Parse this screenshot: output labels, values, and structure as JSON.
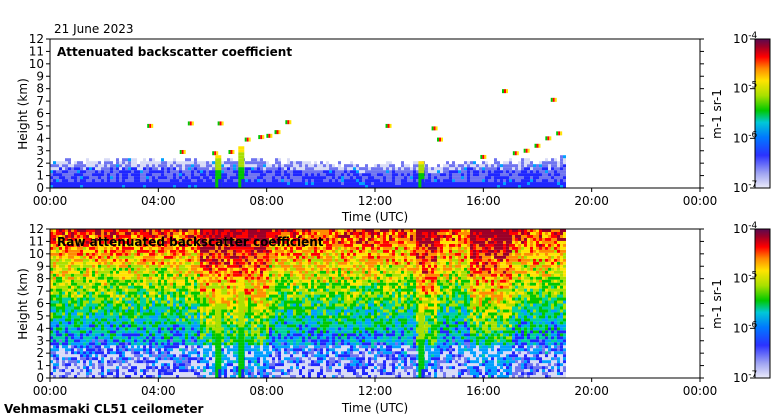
{
  "date_label": "21 June 2023",
  "instrument_label": "Vehmasmaki CL51 ceilometer",
  "colors": {
    "frame": "#000000",
    "background": "#ffffff",
    "colormap": [
      "#d8dbf6",
      "#6f74f0",
      "#1f26ff",
      "#00a0ff",
      "#00d0a0",
      "#00c800",
      "#a8e000",
      "#ffe400",
      "#ff8c00",
      "#ff0000",
      "#9b0028",
      "#5a0a50"
    ]
  },
  "chart_data": [
    {
      "type": "heatmap",
      "title": "Attenuated backscatter coefficient",
      "xlabel": "Time (UTC)",
      "ylabel": "Height (km)",
      "x_tick_labels": [
        "00:00",
        "04:00",
        "08:00",
        "12:00",
        "16:00",
        "20:00",
        "00:00"
      ],
      "x_tick_hours": [
        0,
        4,
        8,
        12,
        16,
        20,
        24
      ],
      "xlim_hours": [
        0,
        24
      ],
      "y_ticks": [
        0,
        1,
        2,
        3,
        4,
        5,
        6,
        7,
        8,
        9,
        10,
        11,
        12
      ],
      "ylim_km": [
        0,
        12
      ],
      "data_end_hour": 19.0,
      "colorbar": {
        "scale": "log",
        "min_label": "10-7",
        "max_label": "10-4",
        "tick_labels": [
          "10-4",
          "10-5",
          "10-6",
          "10-7"
        ],
        "unit_label": "m-1 sr-1"
      },
      "features": {
        "boundary_layer_km": [
          [
            0,
            2.0
          ],
          [
            6,
            2.2
          ],
          [
            12,
            1.7
          ],
          [
            18,
            2.1
          ],
          [
            19,
            2.4
          ]
        ],
        "precipitation_streaks": [
          {
            "hour": 6.25,
            "top_km": 2.6
          },
          {
            "hour": 7.1,
            "top_km": 3.3
          },
          {
            "hour": 13.75,
            "top_km": 2.1
          }
        ],
        "cloud_echoes": [
          {
            "hour": 3.7,
            "km": 5.0
          },
          {
            "hour": 4.9,
            "km": 2.9
          },
          {
            "hour": 5.2,
            "km": 5.2
          },
          {
            "hour": 6.1,
            "km": 2.8
          },
          {
            "hour": 6.3,
            "km": 5.2
          },
          {
            "hour": 6.7,
            "km": 2.9
          },
          {
            "hour": 7.3,
            "km": 3.9
          },
          {
            "hour": 7.8,
            "km": 4.1
          },
          {
            "hour": 8.1,
            "km": 4.2
          },
          {
            "hour": 8.4,
            "km": 4.5
          },
          {
            "hour": 8.8,
            "km": 5.3
          },
          {
            "hour": 12.5,
            "km": 5.0
          },
          {
            "hour": 14.2,
            "km": 4.8
          },
          {
            "hour": 14.4,
            "km": 3.9
          },
          {
            "hour": 16.0,
            "km": 2.5
          },
          {
            "hour": 16.8,
            "km": 7.8
          },
          {
            "hour": 17.2,
            "km": 2.8
          },
          {
            "hour": 17.6,
            "km": 3.0
          },
          {
            "hour": 18.0,
            "km": 3.4
          },
          {
            "hour": 18.4,
            "km": 4.0
          },
          {
            "hour": 18.6,
            "km": 7.1
          },
          {
            "hour": 18.8,
            "km": 4.4
          }
        ]
      }
    },
    {
      "type": "heatmap",
      "title": "Raw attenuated backscatter coefficient",
      "xlabel": "Time (UTC)",
      "ylabel": "Height (km)",
      "x_tick_labels": [
        "00:00",
        "04:00",
        "08:00",
        "12:00",
        "16:00",
        "20:00",
        "00:00"
      ],
      "x_tick_hours": [
        0,
        4,
        8,
        12,
        16,
        20,
        24
      ],
      "xlim_hours": [
        0,
        24
      ],
      "y_ticks": [
        0,
        1,
        2,
        3,
        4,
        5,
        6,
        7,
        8,
        9,
        10,
        11,
        12
      ],
      "ylim_km": [
        0,
        12
      ],
      "data_end_hour": 19.0,
      "colorbar": {
        "scale": "log",
        "min_label": "10-7",
        "max_label": "10-4",
        "tick_labels": [
          "10-4",
          "10-5",
          "10-6",
          "10-7"
        ],
        "unit_label": "m-1 sr-1"
      },
      "features": {
        "noise_increases_with_height": true,
        "noisy_columns_hours": [
          [
            5.5,
            8.0
          ],
          [
            13.5,
            14.2
          ],
          [
            15.5,
            17.0
          ]
        ],
        "precipitation_streaks": [
          {
            "hour": 6.25,
            "top_km": 7.0
          },
          {
            "hour": 7.1,
            "top_km": 8.0
          },
          {
            "hour": 13.75,
            "top_km": 6.0
          }
        ]
      }
    }
  ]
}
